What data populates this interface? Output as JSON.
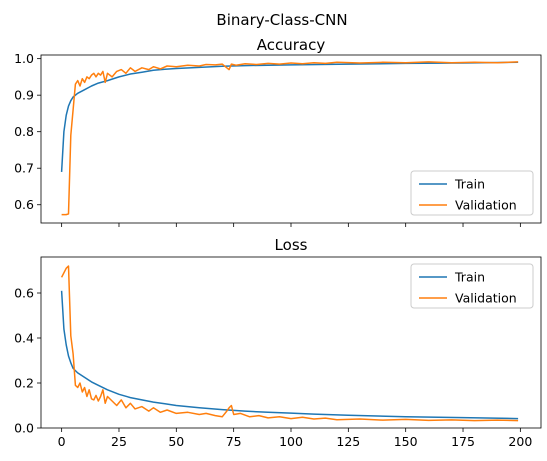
{
  "figure": {
    "suptitle": "Binary-Class-CNN"
  },
  "colors": {
    "train": "#1f77b4",
    "validation": "#ff7f0e"
  },
  "chart_data": [
    {
      "type": "line",
      "title": "Accuracy",
      "xlabel": "",
      "ylabel": "",
      "xlim": [
        -9,
        209
      ],
      "ylim": [
        0.55,
        1.01
      ],
      "yticks": [
        "0.6",
        "0.7",
        "0.8",
        "0.9",
        "1.0"
      ],
      "ytick_values": [
        0.6,
        0.7,
        0.8,
        0.9,
        1.0
      ],
      "xtick_values": [
        0,
        25,
        50,
        75,
        100,
        125,
        150,
        175,
        200
      ],
      "show_xticklabels": false,
      "grid": false,
      "legend": {
        "position": "lower-right",
        "entries": [
          "Train",
          "Validation"
        ]
      },
      "series": [
        {
          "name": "Train",
          "color": "#1f77b4",
          "points": [
            [
              0,
              0.69
            ],
            [
              1,
              0.8
            ],
            [
              2,
              0.845
            ],
            [
              3,
              0.87
            ],
            [
              4,
              0.885
            ],
            [
              5,
              0.895
            ],
            [
              7,
              0.905
            ],
            [
              10,
              0.915
            ],
            [
              13,
              0.925
            ],
            [
              16,
              0.933
            ],
            [
              20,
              0.94
            ],
            [
              25,
              0.95
            ],
            [
              30,
              0.958
            ],
            [
              35,
              0.963
            ],
            [
              40,
              0.968
            ],
            [
              45,
              0.971
            ],
            [
              50,
              0.973
            ],
            [
              60,
              0.976
            ],
            [
              70,
              0.979
            ],
            [
              80,
              0.981
            ],
            [
              90,
              0.982
            ],
            [
              100,
              0.983
            ],
            [
              125,
              0.985
            ],
            [
              150,
              0.987
            ],
            [
              175,
              0.988
            ],
            [
              199,
              0.99
            ]
          ]
        },
        {
          "name": "Validation",
          "color": "#ff7f0e",
          "points": [
            [
              0,
              0.573
            ],
            [
              1,
              0.573
            ],
            [
              2,
              0.573
            ],
            [
              3,
              0.575
            ],
            [
              4,
              0.79
            ],
            [
              5,
              0.86
            ],
            [
              6,
              0.93
            ],
            [
              7,
              0.94
            ],
            [
              8,
              0.925
            ],
            [
              9,
              0.945
            ],
            [
              10,
              0.935
            ],
            [
              11,
              0.95
            ],
            [
              12,
              0.945
            ],
            [
              13,
              0.955
            ],
            [
              14,
              0.96
            ],
            [
              15,
              0.95
            ],
            [
              16,
              0.96
            ],
            [
              17,
              0.955
            ],
            [
              18,
              0.965
            ],
            [
              19,
              0.935
            ],
            [
              20,
              0.96
            ],
            [
              22,
              0.95
            ],
            [
              24,
              0.965
            ],
            [
              26,
              0.97
            ],
            [
              28,
              0.96
            ],
            [
              30,
              0.975
            ],
            [
              32,
              0.965
            ],
            [
              35,
              0.975
            ],
            [
              38,
              0.97
            ],
            [
              40,
              0.978
            ],
            [
              43,
              0.972
            ],
            [
              46,
              0.98
            ],
            [
              50,
              0.978
            ],
            [
              55,
              0.982
            ],
            [
              60,
              0.98
            ],
            [
              63,
              0.984
            ],
            [
              67,
              0.983
            ],
            [
              70,
              0.985
            ],
            [
              72,
              0.975
            ],
            [
              73,
              0.97
            ],
            [
              74,
              0.985
            ],
            [
              76,
              0.982
            ],
            [
              80,
              0.986
            ],
            [
              85,
              0.984
            ],
            [
              90,
              0.987
            ],
            [
              95,
              0.985
            ],
            [
              100,
              0.988
            ],
            [
              105,
              0.986
            ],
            [
              110,
              0.989
            ],
            [
              115,
              0.987
            ],
            [
              120,
              0.99
            ],
            [
              130,
              0.988
            ],
            [
              140,
              0.99
            ],
            [
              150,
              0.989
            ],
            [
              160,
              0.991
            ],
            [
              170,
              0.989
            ],
            [
              180,
              0.99
            ],
            [
              190,
              0.989
            ],
            [
              199,
              0.991
            ]
          ]
        }
      ]
    },
    {
      "type": "line",
      "title": "Loss",
      "xlabel": "",
      "ylabel": "",
      "xlim": [
        -9,
        209
      ],
      "ylim": [
        0,
        0.76
      ],
      "yticks": [
        "0.0",
        "0.2",
        "0.4",
        "0.6"
      ],
      "ytick_values": [
        0,
        0.2,
        0.4,
        0.6
      ],
      "xticks": [
        "0",
        "25",
        "50",
        "75",
        "100",
        "125",
        "150",
        "175",
        "200"
      ],
      "xtick_values": [
        0,
        25,
        50,
        75,
        100,
        125,
        150,
        175,
        200
      ],
      "show_xticklabels": true,
      "grid": false,
      "legend": {
        "position": "upper-right",
        "entries": [
          "Train",
          "Validation"
        ]
      },
      "series": [
        {
          "name": "Train",
          "color": "#1f77b4",
          "points": [
            [
              0,
              0.61
            ],
            [
              1,
              0.44
            ],
            [
              2,
              0.37
            ],
            [
              3,
              0.32
            ],
            [
              4,
              0.29
            ],
            [
              5,
              0.265
            ],
            [
              7,
              0.245
            ],
            [
              10,
              0.225
            ],
            [
              13,
              0.205
            ],
            [
              16,
              0.19
            ],
            [
              20,
              0.17
            ],
            [
              25,
              0.15
            ],
            [
              30,
              0.135
            ],
            [
              35,
              0.125
            ],
            [
              40,
              0.115
            ],
            [
              45,
              0.108
            ],
            [
              50,
              0.1
            ],
            [
              60,
              0.09
            ],
            [
              70,
              0.082
            ],
            [
              80,
              0.075
            ],
            [
              90,
              0.07
            ],
            [
              100,
              0.066
            ],
            [
              110,
              0.062
            ],
            [
              125,
              0.057
            ],
            [
              150,
              0.05
            ],
            [
              175,
              0.046
            ],
            [
              199,
              0.042
            ]
          ]
        },
        {
          "name": "Validation",
          "color": "#ff7f0e",
          "points": [
            [
              0,
              0.67
            ],
            [
              1,
              0.69
            ],
            [
              2,
              0.71
            ],
            [
              3,
              0.72
            ],
            [
              4,
              0.41
            ],
            [
              5,
              0.33
            ],
            [
              6,
              0.19
            ],
            [
              7,
              0.18
            ],
            [
              8,
              0.2
            ],
            [
              9,
              0.16
            ],
            [
              10,
              0.18
            ],
            [
              11,
              0.14
            ],
            [
              12,
              0.17
            ],
            [
              13,
              0.13
            ],
            [
              14,
              0.125
            ],
            [
              15,
              0.145
            ],
            [
              16,
              0.12
            ],
            [
              17,
              0.14
            ],
            [
              18,
              0.17
            ],
            [
              19,
              0.11
            ],
            [
              20,
              0.14
            ],
            [
              22,
              0.12
            ],
            [
              24,
              0.1
            ],
            [
              26,
              0.125
            ],
            [
              28,
              0.09
            ],
            [
              30,
              0.11
            ],
            [
              32,
              0.085
            ],
            [
              35,
              0.095
            ],
            [
              38,
              0.075
            ],
            [
              40,
              0.09
            ],
            [
              43,
              0.07
            ],
            [
              46,
              0.08
            ],
            [
              50,
              0.065
            ],
            [
              55,
              0.07
            ],
            [
              60,
              0.06
            ],
            [
              63,
              0.065
            ],
            [
              67,
              0.055
            ],
            [
              70,
              0.05
            ],
            [
              72,
              0.075
            ],
            [
              73,
              0.09
            ],
            [
              74,
              0.1
            ],
            [
              75,
              0.06
            ],
            [
              78,
              0.065
            ],
            [
              82,
              0.05
            ],
            [
              86,
              0.055
            ],
            [
              90,
              0.045
            ],
            [
              95,
              0.05
            ],
            [
              100,
              0.042
            ],
            [
              105,
              0.048
            ],
            [
              110,
              0.04
            ],
            [
              115,
              0.044
            ],
            [
              120,
              0.037
            ],
            [
              130,
              0.04
            ],
            [
              140,
              0.035
            ],
            [
              150,
              0.038
            ],
            [
              160,
              0.034
            ],
            [
              170,
              0.036
            ],
            [
              180,
              0.033
            ],
            [
              190,
              0.035
            ],
            [
              199,
              0.033
            ]
          ]
        }
      ]
    }
  ]
}
